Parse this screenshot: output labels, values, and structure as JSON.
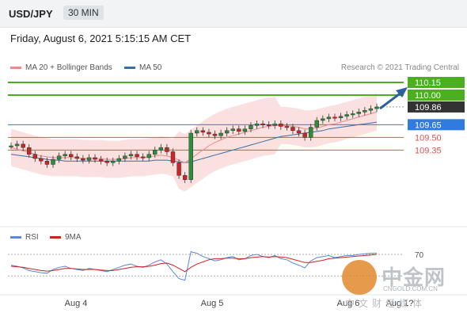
{
  "header": {
    "pair": "USD/JPY",
    "timeframe": "30 MIN"
  },
  "datetime": "Friday, August 6, 2021 5:15:15 AM CET",
  "legend": {
    "ma20": "MA 20 + Bollinger Bands",
    "ma50": "MA 50",
    "credit": "Research © 2021 Trading Central",
    "ma20_color": "#e88b8b",
    "ma50_color": "#3a6ea5"
  },
  "rsi_legend": {
    "rsi": "RSI",
    "ma9": "9MA",
    "rsi_color": "#5b8ad6",
    "ma9_color": "#cc2222"
  },
  "watermark": {
    "cn": "中金网",
    "url": "CNGOLD.COM.CN",
    "sub": "中文财经媒体"
  },
  "chart_data": {
    "type": "candlestick",
    "x_labels": [
      "Aug 4",
      "Aug 5",
      "Aug 6",
      "Aug 1?"
    ],
    "levels": [
      {
        "value": "110.15",
        "type": "target",
        "color": "#4caf20"
      },
      {
        "value": "110.00",
        "type": "target",
        "color": "#4caf20"
      },
      {
        "value": "109.86",
        "type": "last",
        "color": "#333333"
      },
      {
        "value": "109.65",
        "type": "pivot",
        "color": "#2f7be0"
      },
      {
        "value": "109.50",
        "type": "support",
        "color": "#d9534f"
      },
      {
        "value": "109.35",
        "type": "support",
        "color": "#d9534f"
      }
    ],
    "ylim": [
      108.9,
      110.2
    ],
    "closes": [
      109.4,
      109.42,
      109.38,
      109.3,
      109.25,
      109.22,
      109.18,
      109.24,
      109.28,
      109.3,
      109.27,
      109.25,
      109.23,
      109.26,
      109.24,
      109.22,
      109.2,
      109.22,
      109.25,
      109.28,
      109.3,
      109.27,
      109.26,
      109.3,
      109.35,
      109.38,
      109.33,
      109.2,
      109.05,
      109.0,
      109.55,
      109.58,
      109.56,
      109.54,
      109.52,
      109.55,
      109.58,
      109.6,
      109.57,
      109.6,
      109.64,
      109.66,
      109.65,
      109.64,
      109.66,
      109.63,
      109.62,
      109.58,
      109.55,
      109.5,
      109.62,
      109.7,
      109.72,
      109.74,
      109.73,
      109.75,
      109.77,
      109.78,
      109.8,
      109.82,
      109.84,
      109.86
    ],
    "rsi": {
      "level": "70",
      "values": [
        50,
        48,
        45,
        40,
        38,
        36,
        35,
        42,
        46,
        48,
        44,
        42,
        40,
        44,
        42,
        40,
        38,
        42,
        46,
        50,
        52,
        48,
        46,
        50,
        56,
        60,
        52,
        38,
        25,
        22,
        75,
        72,
        66,
        62,
        58,
        60,
        64,
        66,
        60,
        62,
        68,
        70,
        66,
        64,
        68,
        62,
        60,
        54,
        50,
        45,
        58,
        64,
        66,
        68,
        64,
        66,
        68,
        68,
        70,
        71,
        72,
        72
      ]
    },
    "ma9": [
      48,
      47,
      46,
      44,
      42,
      40,
      39,
      40,
      42,
      44,
      44,
      43,
      42,
      42,
      42,
      41,
      40,
      40,
      42,
      44,
      46,
      47,
      47,
      48,
      50,
      53,
      54,
      50,
      44,
      38,
      46,
      52,
      56,
      60,
      62,
      62,
      63,
      63,
      62,
      62,
      64,
      65,
      66,
      65,
      66,
      65,
      64,
      61,
      58,
      55,
      55,
      57,
      59,
      62,
      63,
      64,
      65,
      66,
      67,
      68,
      69,
      70
    ],
    "ma20": [
      109.38,
      109.36,
      109.34,
      109.32,
      109.3,
      109.28,
      109.27,
      109.26,
      109.26,
      109.26,
      109.26,
      109.26,
      109.25,
      109.25,
      109.25,
      109.25,
      109.24,
      109.24,
      109.24,
      109.25,
      109.26,
      109.26,
      109.26,
      109.27,
      109.28,
      109.29,
      109.28,
      109.26,
      109.23,
      109.2,
      109.25,
      109.3,
      109.35,
      109.4,
      109.44,
      109.47,
      109.5,
      109.52,
      109.54,
      109.56,
      109.58,
      109.6,
      109.62,
      109.63,
      109.64,
      109.64,
      109.64,
      109.63,
      109.62,
      109.6,
      109.6,
      109.61,
      109.63,
      109.65,
      109.66,
      109.68,
      109.7,
      109.72,
      109.74,
      109.76,
      109.78,
      109.8
    ],
    "ma50": [
      109.3,
      109.29,
      109.28,
      109.27,
      109.26,
      109.25,
      109.24,
      109.23,
      109.23,
      109.22,
      109.22,
      109.22,
      109.22,
      109.22,
      109.22,
      109.22,
      109.22,
      109.22,
      109.22,
      109.22,
      109.22,
      109.22,
      109.22,
      109.22,
      109.23,
      109.23,
      109.23,
      109.22,
      109.21,
      109.2,
      109.21,
      109.23,
      109.25,
      109.27,
      109.29,
      109.31,
      109.33,
      109.35,
      109.37,
      109.39,
      109.41,
      109.43,
      109.45,
      109.47,
      109.49,
      109.51,
      109.52,
      109.53,
      109.54,
      109.55,
      109.56,
      109.57,
      109.58,
      109.6,
      109.61,
      109.62,
      109.63,
      109.64,
      109.65,
      109.66,
      109.67,
      109.68
    ]
  }
}
